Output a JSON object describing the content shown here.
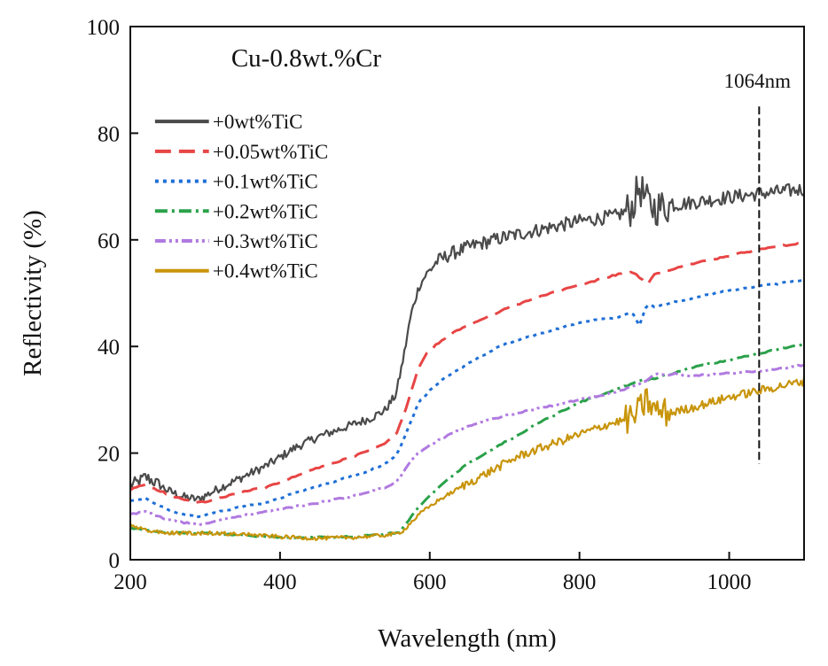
{
  "chart_data": {
    "type": "line",
    "title": "Cu-0.8wt.%Cr",
    "xlabel": "Wavelength (nm)",
    "ylabel": "Reflectivity (%)",
    "xlim": [
      200,
      1100
    ],
    "ylim": [
      0,
      100
    ],
    "xticks": [
      200,
      400,
      600,
      800,
      1000
    ],
    "yticks": [
      0,
      20,
      40,
      60,
      80,
      100
    ],
    "xtick_labels": [
      "200",
      "400",
      "600",
      "800",
      "1000"
    ],
    "ytick_labels": [
      "0",
      "20",
      "40",
      "60",
      "80",
      "100"
    ],
    "grid": false,
    "legend_position": "top-left",
    "annotation": {
      "text": "1064nm",
      "x": 1040,
      "y_range": [
        18,
        85
      ]
    },
    "series": [
      {
        "name": "+0wt%TiC",
        "color": "#4a4a4a",
        "dash": "solid",
        "x": [
          200,
          210,
          220,
          230,
          250,
          270,
          290,
          300,
          320,
          350,
          380,
          400,
          420,
          450,
          480,
          500,
          520,
          540,
          555,
          565,
          575,
          585,
          595,
          610,
          630,
          660,
          700,
          750,
          800,
          850,
          870,
          880,
          890,
          900,
          950,
          1000,
          1050,
          1100
        ],
        "y": [
          14,
          14.5,
          15.5,
          14.8,
          13,
          11.8,
          11.3,
          12,
          13.5,
          15.5,
          17.5,
          19.2,
          21,
          23,
          24.5,
          25.5,
          26.5,
          28,
          31,
          38,
          46,
          51,
          53.5,
          56,
          57.5,
          59,
          60.5,
          62,
          63.5,
          64.5,
          66,
          70,
          67,
          66,
          67,
          68,
          68.8,
          69.5
        ]
      },
      {
        "name": "+0.05wt%TiC",
        "color": "#e84545",
        "dash": "18,9",
        "x": [
          200,
          210,
          220,
          230,
          250,
          270,
          290,
          300,
          320,
          350,
          380,
          400,
          420,
          450,
          480,
          500,
          520,
          540,
          555,
          565,
          575,
          585,
          595,
          610,
          630,
          660,
          700,
          750,
          800,
          850,
          870,
          880,
          890,
          900,
          950,
          1000,
          1050,
          1100
        ],
        "y": [
          13,
          13.8,
          14,
          13.5,
          12.3,
          11.3,
          10.8,
          10.8,
          11.5,
          12.8,
          13.5,
          14.5,
          15.6,
          17.2,
          18.5,
          19.5,
          20.5,
          21.8,
          23.5,
          27,
          31.5,
          36,
          38.5,
          40.5,
          42.5,
          44.5,
          47,
          49.5,
          51.5,
          53.5,
          54,
          53,
          51.5,
          53.5,
          55.5,
          57,
          58.5,
          59.5
        ]
      },
      {
        "name": "+0.1wt%TiC",
        "color": "#1f6fd6",
        "dash": "4,5",
        "x": [
          200,
          210,
          220,
          230,
          250,
          270,
          290,
          300,
          320,
          350,
          380,
          400,
          420,
          450,
          480,
          500,
          520,
          540,
          555,
          565,
          575,
          585,
          595,
          610,
          630,
          660,
          700,
          750,
          800,
          850,
          870,
          880,
          890,
          900,
          950,
          1000,
          1050,
          1100
        ],
        "y": [
          11,
          11.3,
          11.5,
          10.7,
          9.5,
          8.5,
          8,
          8.3,
          9,
          10,
          10.6,
          11.5,
          12.6,
          13.8,
          15,
          15.8,
          16.7,
          18,
          19.5,
          22.5,
          26,
          29.5,
          31,
          33,
          35,
          37.5,
          40.5,
          42.5,
          44.5,
          45.5,
          46.5,
          44,
          48,
          47.5,
          49,
          50.5,
          51.5,
          52.5
        ]
      },
      {
        "name": "+0.2wt%TiC",
        "color": "#2aa14a",
        "dash": "14,5,3,5",
        "x": [
          200,
          220,
          250,
          300,
          350,
          400,
          450,
          500,
          540,
          560,
          570,
          580,
          600,
          620,
          650,
          700,
          750,
          800,
          850,
          880,
          900,
          950,
          1000,
          1050,
          1100
        ],
        "y": [
          6,
          5.5,
          5,
          5,
          4.6,
          4.2,
          4.2,
          4.3,
          4.8,
          5.2,
          7,
          9,
          12,
          14.5,
          18,
          22,
          26,
          29.5,
          32,
          33.5,
          34,
          36,
          37.5,
          39,
          40.5
        ]
      },
      {
        "name": "+0.3wt%TiC",
        "color": "#b07ae0",
        "dash": "12,4,3,4,3,4",
        "x": [
          200,
          210,
          220,
          230,
          250,
          270,
          290,
          300,
          320,
          350,
          380,
          400,
          420,
          450,
          480,
          500,
          520,
          540,
          555,
          565,
          575,
          585,
          600,
          620,
          650,
          700,
          750,
          800,
          850,
          880,
          900,
          950,
          1000,
          1050,
          1100
        ],
        "y": [
          8.5,
          8.8,
          9,
          8.5,
          7.5,
          7,
          6.6,
          6.8,
          7.5,
          8.3,
          9,
          9.5,
          10,
          10.6,
          11.5,
          12,
          12.8,
          13.5,
          14.5,
          16.5,
          18.5,
          20,
          21.5,
          23,
          25,
          27,
          28.5,
          30,
          31.5,
          33,
          35,
          34.5,
          35,
          35.5,
          36.5
        ]
      },
      {
        "name": "+0.4wt%TiC",
        "color": "#c8940a",
        "dash": "solid",
        "x": [
          200,
          220,
          250,
          300,
          350,
          400,
          450,
          500,
          540,
          555,
          565,
          575,
          590,
          610,
          640,
          680,
          720,
          760,
          800,
          840,
          870,
          880,
          890,
          900,
          920,
          950,
          1000,
          1050,
          1100
        ],
        "y": [
          6.5,
          5.5,
          5,
          5,
          4.8,
          4.3,
          4,
          4.2,
          4.6,
          4.8,
          5.5,
          7,
          9,
          11,
          13.5,
          16.5,
          19.5,
          21.5,
          23.5,
          25.5,
          26.5,
          28,
          30,
          28,
          27.5,
          28.5,
          30.5,
          32,
          33.5
        ]
      }
    ]
  }
}
